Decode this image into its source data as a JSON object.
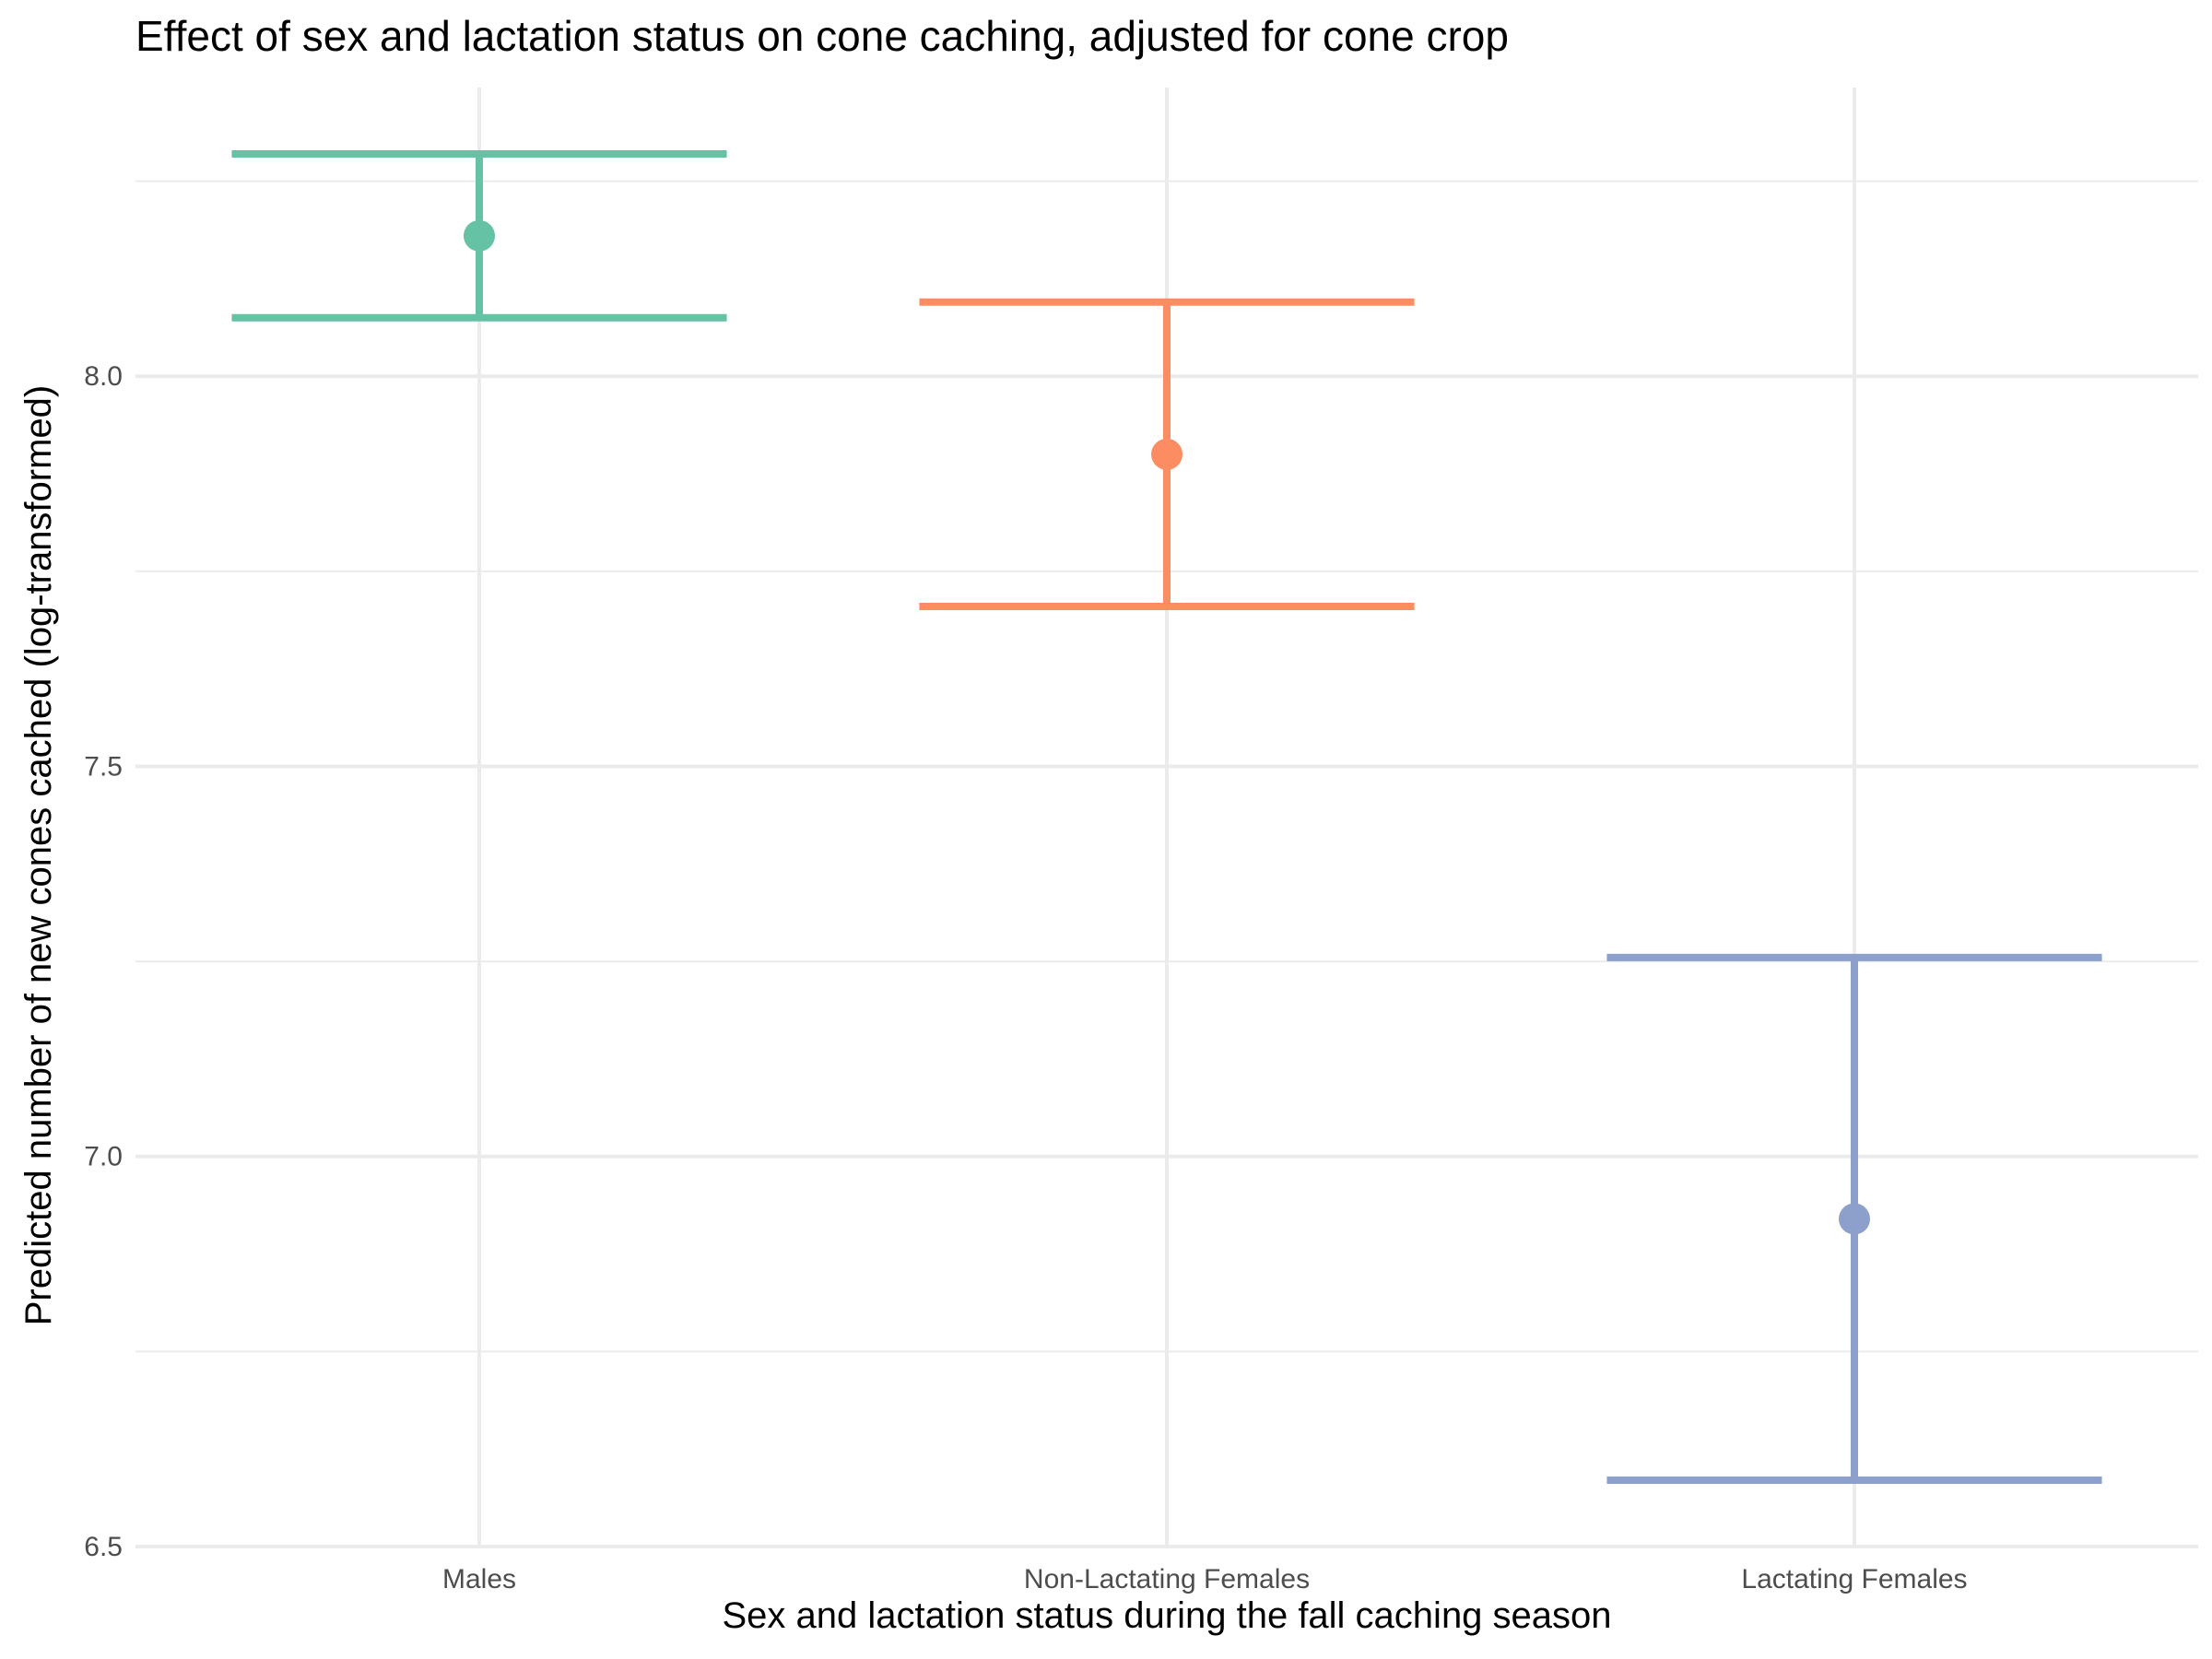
{
  "chart_data": {
    "type": "errorbar",
    "title": "Effect of sex and lactation status on cone caching, adjusted for cone crop",
    "xlabel": "Sex and lactation status during the fall caching season",
    "ylabel": "Predicted number of new cones cached (log-transformed)",
    "categories": [
      "Males",
      "Non-Lactating Females",
      "Lactating Females"
    ],
    "points": [
      {
        "category": "Males",
        "estimate": 8.18,
        "lower": 8.075,
        "upper": 8.285,
        "color": "#66C2A5"
      },
      {
        "category": "Non-Lactating Females",
        "estimate": 7.9,
        "lower": 7.705,
        "upper": 8.095,
        "color": "#FC8D62"
      },
      {
        "category": "Lactating Females",
        "estimate": 6.92,
        "lower": 6.585,
        "upper": 7.255,
        "color": "#8DA0CB"
      }
    ],
    "ylim": [
      6.5,
      8.37
    ],
    "y_ticks": [
      6.5,
      7.0,
      7.5,
      8.0
    ],
    "y_tick_labels": [
      "6.5",
      "7.0",
      "7.5",
      "8.0"
    ],
    "grid": true,
    "legend": "none",
    "colors": {
      "grid": "#EBEBEB",
      "tick_text": "#4D4D4D"
    }
  }
}
